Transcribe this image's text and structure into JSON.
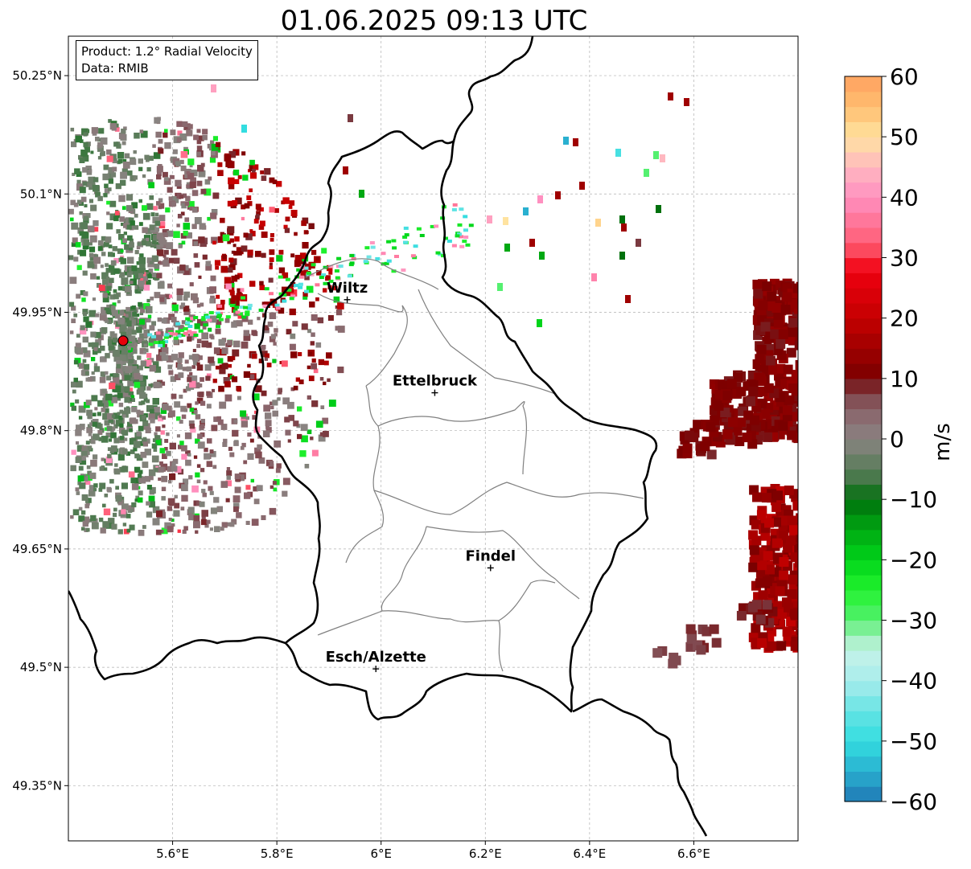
{
  "title": "01.06.2025 09:13 UTC",
  "info_box": {
    "product": "Product: 1.2° Radial Velocity",
    "data": "Data: RMIB"
  },
  "map": {
    "lon_range": [
      5.4,
      6.8
    ],
    "lat_range": [
      49.28,
      50.3
    ],
    "x_ticks": [
      {
        "value": 5.6,
        "label": "5.6°E"
      },
      {
        "value": 5.8,
        "label": "5.8°E"
      },
      {
        "value": 6.0,
        "label": "6°E"
      },
      {
        "value": 6.2,
        "label": "6.2°E"
      },
      {
        "value": 6.4,
        "label": "6.4°E"
      },
      {
        "value": 6.6,
        "label": "6.6°E"
      }
    ],
    "y_ticks": [
      {
        "value": 50.25,
        "label": "50.25°N"
      },
      {
        "value": 50.1,
        "label": "50.1°N"
      },
      {
        "value": 49.95,
        "label": "49.95°N"
      },
      {
        "value": 49.8,
        "label": "49.8°N"
      },
      {
        "value": 49.65,
        "label": "49.65°N"
      },
      {
        "value": 49.5,
        "label": "49.5°N"
      },
      {
        "value": 49.35,
        "label": "49.35°N"
      }
    ],
    "gridlines": true,
    "radar_site": {
      "lon": 5.505,
      "lat": 49.914,
      "color": "#e8000b"
    },
    "cities": [
      {
        "name": "Wiltz",
        "lon": 5.935,
        "lat": 49.966
      },
      {
        "name": "Ettelbruck",
        "lon": 6.103,
        "lat": 49.848
      },
      {
        "name": "Findel",
        "lon": 6.21,
        "lat": 49.626
      },
      {
        "name": "Esch/Alzette",
        "lon": 5.99,
        "lat": 49.498
      }
    ]
  },
  "colorbar": {
    "label": "m/s",
    "min": -60,
    "max": 60,
    "ticks": [
      {
        "value": 60,
        "label": "60"
      },
      {
        "value": 50,
        "label": "50"
      },
      {
        "value": 40,
        "label": "40"
      },
      {
        "value": 30,
        "label": "30"
      },
      {
        "value": 20,
        "label": "20"
      },
      {
        "value": 10,
        "label": "10"
      },
      {
        "value": 0,
        "label": "0"
      },
      {
        "value": -10,
        "label": "−10"
      },
      {
        "value": -20,
        "label": "−20"
      },
      {
        "value": -30,
        "label": "−30"
      },
      {
        "value": -40,
        "label": "−40"
      },
      {
        "value": -50,
        "label": "−50"
      },
      {
        "value": -60,
        "label": "−60"
      }
    ],
    "color_stops": [
      {
        "value": -60,
        "color": "#1f77b4"
      },
      {
        "value": -55,
        "color": "#2ab0d0"
      },
      {
        "value": -50,
        "color": "#33dde0"
      },
      {
        "value": -45,
        "color": "#66e4e4"
      },
      {
        "value": -40,
        "color": "#a8ecec"
      },
      {
        "value": -35,
        "color": "#c5f2e8"
      },
      {
        "value": -32,
        "color": "#8ff0a8"
      },
      {
        "value": -30,
        "color": "#55f070"
      },
      {
        "value": -25,
        "color": "#22f22e"
      },
      {
        "value": -20,
        "color": "#00d41a"
      },
      {
        "value": -15,
        "color": "#00a812"
      },
      {
        "value": -10,
        "color": "#00700d"
      },
      {
        "value": -6,
        "color": "#4f7a50"
      },
      {
        "value": 0,
        "color": "#8a8482"
      },
      {
        "value": 5,
        "color": "#8a6168"
      },
      {
        "value": 8,
        "color": "#7a3a40"
      },
      {
        "value": 10,
        "color": "#7a0000"
      },
      {
        "value": 20,
        "color": "#c40000"
      },
      {
        "value": 28,
        "color": "#f00010"
      },
      {
        "value": 32,
        "color": "#ff5a70"
      },
      {
        "value": 40,
        "color": "#ff90c0"
      },
      {
        "value": 45,
        "color": "#ffb8c0"
      },
      {
        "value": 50,
        "color": "#ffe3a0"
      },
      {
        "value": 55,
        "color": "#ffbe70"
      },
      {
        "value": 60,
        "color": "#ffa060"
      }
    ]
  },
  "boundary_color": "#000000",
  "canton_color": "#808080"
}
